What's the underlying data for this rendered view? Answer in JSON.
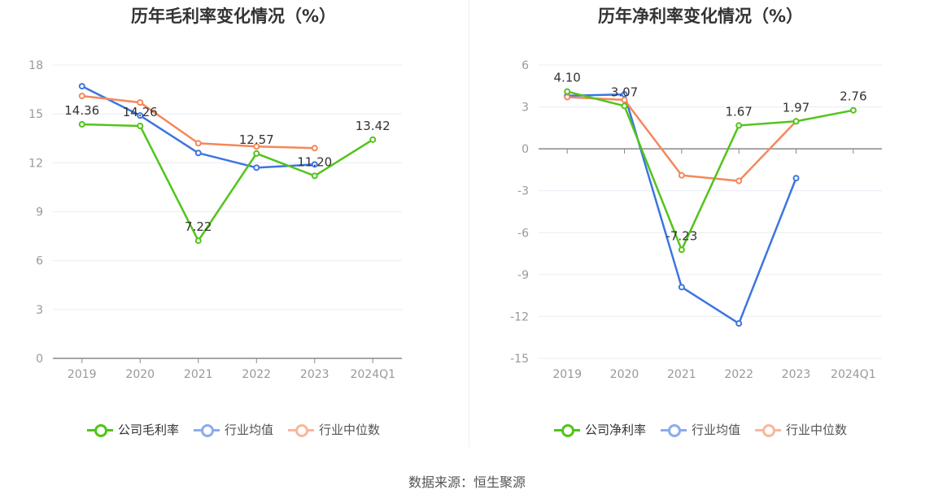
{
  "colors": {
    "company": "#52c41a",
    "avg": "#3d75e0",
    "median": "#f5875a",
    "axis": "#999999",
    "grid": "#e9ecf5"
  },
  "source": "数据来源：恒生聚源",
  "chart_data": [
    {
      "type": "line",
      "title": "历年毛利率变化情况（%）",
      "categories": [
        "2019",
        "2020",
        "2021",
        "2022",
        "2023",
        "2024Q1"
      ],
      "ylim": [
        0,
        18
      ],
      "yticks": [
        0,
        3,
        6,
        9,
        12,
        15,
        18
      ],
      "series": [
        {
          "name": "公司毛利率",
          "role": "company",
          "values": [
            14.36,
            14.26,
            7.22,
            12.57,
            11.2,
            13.42
          ],
          "labels": [
            "14.36",
            "14.26",
            "7.22",
            "12.57",
            "11.20",
            "13.42"
          ]
        },
        {
          "name": "行业均值",
          "role": "avg",
          "values": [
            16.7,
            14.9,
            12.6,
            11.7,
            11.9,
            null
          ]
        },
        {
          "name": "行业中位数",
          "role": "median",
          "values": [
            16.1,
            15.7,
            13.2,
            13.0,
            12.9,
            null
          ]
        }
      ]
    },
    {
      "type": "line",
      "title": "历年净利率变化情况（%）",
      "categories": [
        "2019",
        "2020",
        "2021",
        "2022",
        "2023",
        "2024Q1"
      ],
      "ylim": [
        -15,
        6
      ],
      "yticks": [
        -15,
        -12,
        -9,
        -6,
        -3,
        0,
        3,
        6
      ],
      "series": [
        {
          "name": "公司净利率",
          "role": "company",
          "values": [
            4.1,
            3.07,
            -7.23,
            1.67,
            1.97,
            2.76
          ],
          "labels": [
            "4.10",
            "3.07",
            "-7.23",
            "1.67",
            "1.97",
            "2.76"
          ]
        },
        {
          "name": "行业均值",
          "role": "avg",
          "values": [
            3.8,
            3.9,
            -9.9,
            -12.5,
            -2.1,
            null
          ]
        },
        {
          "name": "行业中位数",
          "role": "median",
          "values": [
            3.7,
            3.5,
            -1.9,
            -2.3,
            1.97,
            null
          ]
        }
      ]
    }
  ]
}
